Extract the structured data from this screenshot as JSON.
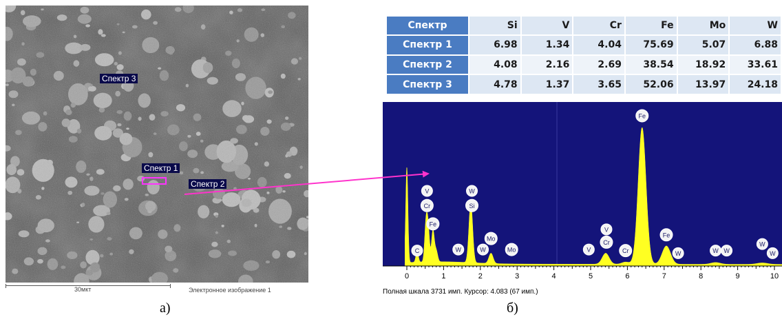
{
  "panel_a": {
    "tags": [
      {
        "id": "spectrum-3",
        "text": "Спектр 3"
      },
      {
        "id": "spectrum-1",
        "text": "Спектр 1"
      },
      {
        "id": "spectrum-2",
        "text": "Спектр 2"
      }
    ],
    "scale_label": "30мкт",
    "caption": "Электронное изображение 1",
    "label": "а)"
  },
  "panel_b": {
    "label": "б)",
    "status_line": "Полная шкала 3731 имп. Курсор: 4.083  (67 имп.)"
  },
  "table": {
    "columns": [
      "Спектр",
      "Si",
      "V",
      "Cr",
      "Fe",
      "Mo",
      "W"
    ],
    "rows": [
      [
        "Спектр 1",
        "6.98",
        "1.34",
        "4.04",
        "75.69",
        "5.07",
        "6.88"
      ],
      [
        "Спектр 2",
        "4.08",
        "2.16",
        "2.69",
        "38.54",
        "18.92",
        "33.61"
      ],
      [
        "Спектр 3",
        "4.78",
        "1.37",
        "3.65",
        "52.06",
        "13.97",
        "24.18"
      ]
    ]
  },
  "colors": {
    "spectrum_fill": "#ffff22",
    "spectrum_background": "#14147a",
    "arrow": "#ff33cc",
    "table_header": "#4a7cc2",
    "table_cell": "#dde7f3"
  },
  "chart_data": {
    "type": "area",
    "title": "",
    "xlabel": "",
    "ylabel": "",
    "xlim": [
      -0.5,
      10.3
    ],
    "x_ticks": [
      0,
      1,
      2,
      3,
      4,
      5,
      6,
      7,
      8,
      9,
      10
    ],
    "y_full_scale": 3731,
    "cursor_x": 4.083,
    "cursor_counts": 67,
    "peaks": [
      {
        "x": 0.0,
        "y": 2600
      },
      {
        "x": 0.28,
        "y": 300
      },
      {
        "x": 0.52,
        "y": 1000
      },
      {
        "x": 0.58,
        "y": 900
      },
      {
        "x": 0.71,
        "y": 850
      },
      {
        "x": 0.8,
        "y": 300
      },
      {
        "x": 1.74,
        "y": 1650
      },
      {
        "x": 2.29,
        "y": 280
      },
      {
        "x": 5.41,
        "y": 300
      },
      {
        "x": 5.95,
        "y": 60
      },
      {
        "x": 6.4,
        "y": 3731
      },
      {
        "x": 7.06,
        "y": 500
      },
      {
        "x": 8.4,
        "y": 50
      },
      {
        "x": 9.67,
        "y": 40
      }
    ],
    "peak_labels": [
      {
        "text": "C",
        "x": 0.28,
        "y": 420
      },
      {
        "text": "V",
        "x": 0.55,
        "y": 2050
      },
      {
        "text": "Cr",
        "x": 0.55,
        "y": 1650
      },
      {
        "text": "Fe",
        "x": 0.71,
        "y": 1150
      },
      {
        "text": "W",
        "x": 1.4,
        "y": 450
      },
      {
        "text": "W",
        "x": 1.77,
        "y": 2050
      },
      {
        "text": "Si",
        "x": 1.77,
        "y": 1650
      },
      {
        "text": "W",
        "x": 2.07,
        "y": 450
      },
      {
        "text": "Mo",
        "x": 2.29,
        "y": 750
      },
      {
        "text": "Mo",
        "x": 2.85,
        "y": 450
      },
      {
        "text": "V",
        "x": 4.95,
        "y": 450
      },
      {
        "text": "V",
        "x": 5.43,
        "y": 1000
      },
      {
        "text": "Cr",
        "x": 5.43,
        "y": 650
      },
      {
        "text": "Cr",
        "x": 5.95,
        "y": 420
      },
      {
        "text": "Fe",
        "x": 6.4,
        "y": 4100
      },
      {
        "text": "Fe",
        "x": 7.06,
        "y": 850
      },
      {
        "text": "W",
        "x": 7.38,
        "y": 350
      },
      {
        "text": "W",
        "x": 8.4,
        "y": 420
      },
      {
        "text": "W",
        "x": 8.7,
        "y": 420
      },
      {
        "text": "W",
        "x": 9.67,
        "y": 600
      },
      {
        "text": "W",
        "x": 9.95,
        "y": 350
      }
    ]
  }
}
